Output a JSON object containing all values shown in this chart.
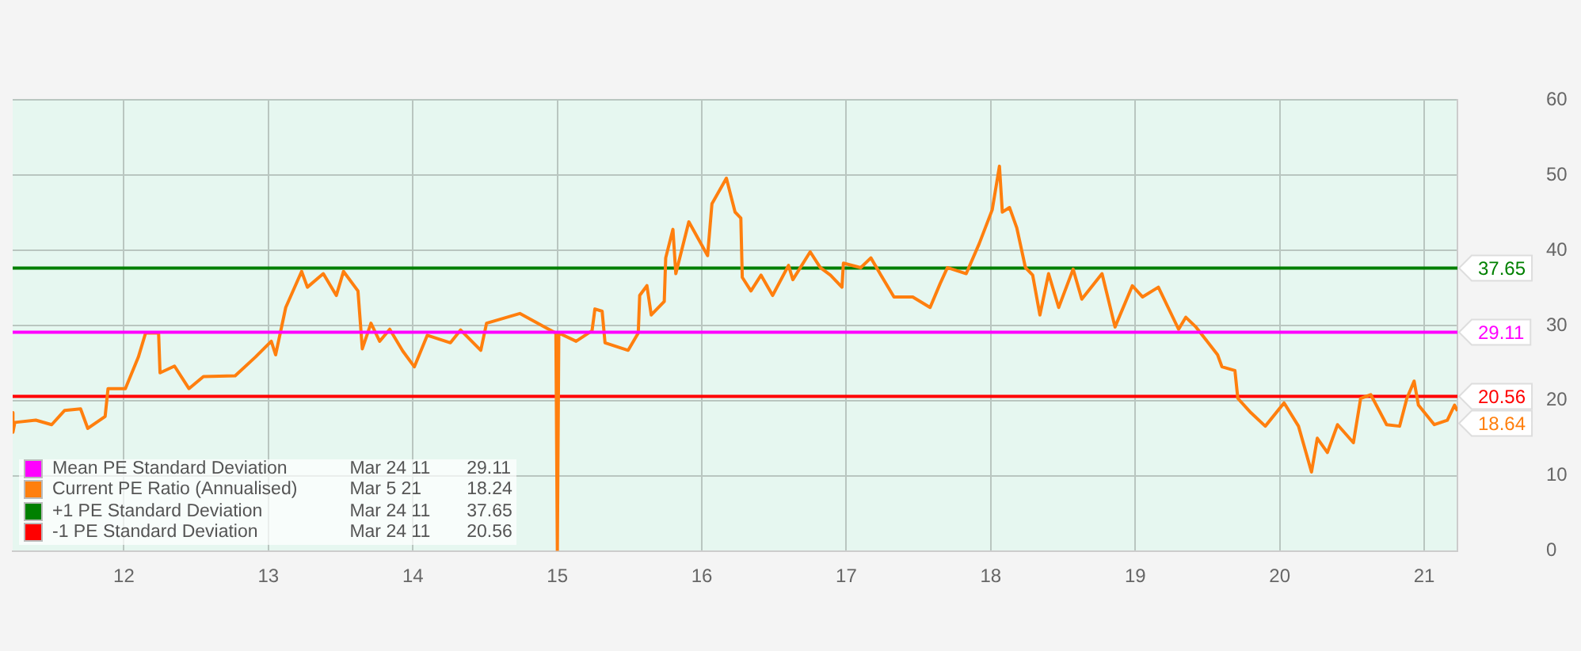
{
  "chart_data": {
    "type": "line",
    "xlim": [
      11.23,
      21.23
    ],
    "xticks": [
      12,
      13,
      14,
      15,
      16,
      17,
      18,
      19,
      20,
      21
    ],
    "ylim": [
      0,
      60
    ],
    "yticks": [
      0,
      10,
      20,
      30,
      40,
      50,
      60
    ],
    "grid": true,
    "legend": "bottom left",
    "marker": "none",
    "line_style": "solid",
    "annotations": [
      "Mar 24 11",
      "29.11",
      "Mar 5 21",
      "18.24",
      "Mar 24 11",
      "37.65",
      "Mar 24 11",
      "20.56"
    ],
    "series": [
      {
        "name": "Mean PE Standard Deviation",
        "color": "#ff00ff",
        "x": [
          11.23,
          21.23
        ],
        "values": [
          29.11,
          29.11
        ],
        "value_labels": [
          null,
          "29.11"
        ]
      },
      {
        "name": "Current PE Ratio (Annualised)",
        "color": "#ff7f0e",
        "x": [
          11.23,
          11.232,
          11.245,
          11.39,
          11.5,
          11.59,
          11.7,
          11.75,
          11.87,
          11.89,
          12.01,
          12.1,
          12.15,
          12.24,
          12.25,
          12.35,
          12.45,
          12.55,
          12.77,
          12.91,
          13.02,
          13.05,
          13.12,
          13.23,
          13.27,
          13.38,
          13.47,
          13.52,
          13.62,
          13.65,
          13.71,
          13.77,
          13.84,
          13.93,
          14.01,
          14.1,
          14.26,
          14.33,
          14.47,
          14.51,
          14.74,
          14.94,
          14.99,
          15.0,
          15.01,
          15.13,
          15.24,
          15.26,
          15.31,
          15.33,
          15.49,
          15.56,
          15.57,
          15.62,
          15.65,
          15.74,
          15.75,
          15.8,
          15.82,
          15.91,
          16.04,
          16.07,
          16.17,
          16.23,
          16.27,
          16.28,
          16.34,
          16.41,
          16.49,
          16.6,
          16.63,
          16.75,
          16.82,
          16.89,
          16.97,
          16.98,
          17.1,
          17.17,
          17.24,
          17.33,
          17.46,
          17.58,
          17.65,
          17.7,
          17.83,
          17.92,
          18.01,
          18.06,
          18.08,
          18.13,
          18.18,
          18.24,
          18.29,
          18.34,
          18.4,
          18.47,
          18.57,
          18.63,
          18.77,
          18.86,
          18.98,
          19.05,
          19.16,
          19.3,
          19.35,
          19.42,
          19.57,
          19.6,
          19.69,
          19.71,
          19.8,
          19.9,
          20.03,
          20.13,
          20.22,
          20.26,
          20.33,
          20.4,
          20.51,
          20.56,
          20.63,
          20.74,
          20.83,
          20.88,
          20.93,
          20.96,
          21.07,
          21.16,
          21.21,
          21.23
        ],
        "values": [
          18.4,
          15.8,
          17.1,
          17.4,
          16.8,
          18.7,
          18.9,
          16.3,
          17.9,
          21.6,
          21.6,
          25.8,
          29.0,
          29.0,
          23.7,
          24.6,
          21.6,
          23.2,
          23.3,
          25.8,
          27.9,
          26.1,
          32.4,
          37.2,
          35.1,
          36.9,
          34.0,
          37.2,
          34.6,
          26.9,
          30.3,
          27.9,
          29.5,
          26.6,
          24.5,
          28.7,
          27.7,
          29.4,
          26.7,
          30.3,
          31.6,
          29.5,
          29.0,
          0,
          29.0,
          27.9,
          29.3,
          32.2,
          31.9,
          27.7,
          26.7,
          29.0,
          34.0,
          35.3,
          31.4,
          33.2,
          39.0,
          42.8,
          36.9,
          43.8,
          39.3,
          46.2,
          49.6,
          45.1,
          44.3,
          36.4,
          34.6,
          36.7,
          34.0,
          38.0,
          36.1,
          39.8,
          37.7,
          36.7,
          35.1,
          38.3,
          37.7,
          39.0,
          36.7,
          33.8,
          33.8,
          32.4,
          35.6,
          37.7,
          36.9,
          40.9,
          45.4,
          51.2,
          45.1,
          45.7,
          43.0,
          37.7,
          36.7,
          31.4,
          36.9,
          32.4,
          37.5,
          33.5,
          36.9,
          29.8,
          35.3,
          33.8,
          35.1,
          29.5,
          31.1,
          29.8,
          26.1,
          24.5,
          24.0,
          20.3,
          18.4,
          16.6,
          19.7,
          16.6,
          10.5,
          15.0,
          13.1,
          16.8,
          14.4,
          20.3,
          20.8,
          16.8,
          16.6,
          20.3,
          22.6,
          19.4,
          16.8,
          17.4,
          19.4,
          18.64
        ],
        "value_labels": [
          null,
          null,
          null,
          null,
          null,
          null,
          null,
          null,
          null,
          null,
          null,
          null,
          null,
          null,
          null,
          null,
          null,
          null,
          null,
          null,
          null,
          null,
          null,
          null,
          null,
          null,
          null,
          null,
          null,
          null,
          null,
          null,
          null,
          null,
          null,
          null,
          null,
          null,
          null,
          null,
          null,
          null,
          null,
          null,
          null,
          null,
          null,
          null,
          null,
          null,
          null,
          null,
          null,
          null,
          null,
          null,
          null,
          null,
          null,
          null,
          null,
          null,
          null,
          null,
          null,
          null,
          null,
          null,
          null,
          null,
          null,
          null,
          null,
          null,
          null,
          null,
          null,
          null,
          null,
          null,
          null,
          null,
          null,
          null,
          null,
          null,
          null,
          null,
          null,
          null,
          null,
          null,
          null,
          null,
          null,
          null,
          null,
          null,
          null,
          null,
          null,
          null,
          null,
          null,
          null,
          null,
          null,
          null,
          null,
          null,
          null,
          null,
          null,
          null,
          null,
          null,
          null,
          null,
          null,
          null,
          null,
          null,
          null,
          null,
          null,
          null,
          null,
          null,
          null,
          "18.64"
        ]
      },
      {
        "name": "+1 PE Standard Deviation",
        "color": "#008000",
        "x": [
          11.23,
          21.23
        ],
        "values": [
          37.65,
          37.65
        ],
        "value_labels": [
          null,
          "37.65"
        ]
      },
      {
        "name": "-1 PE Standard Deviation",
        "color": "#ff0000",
        "x": [
          11.23,
          21.23
        ],
        "values": [
          20.56,
          20.56
        ],
        "value_labels": [
          null,
          "20.56"
        ]
      }
    ]
  }
}
